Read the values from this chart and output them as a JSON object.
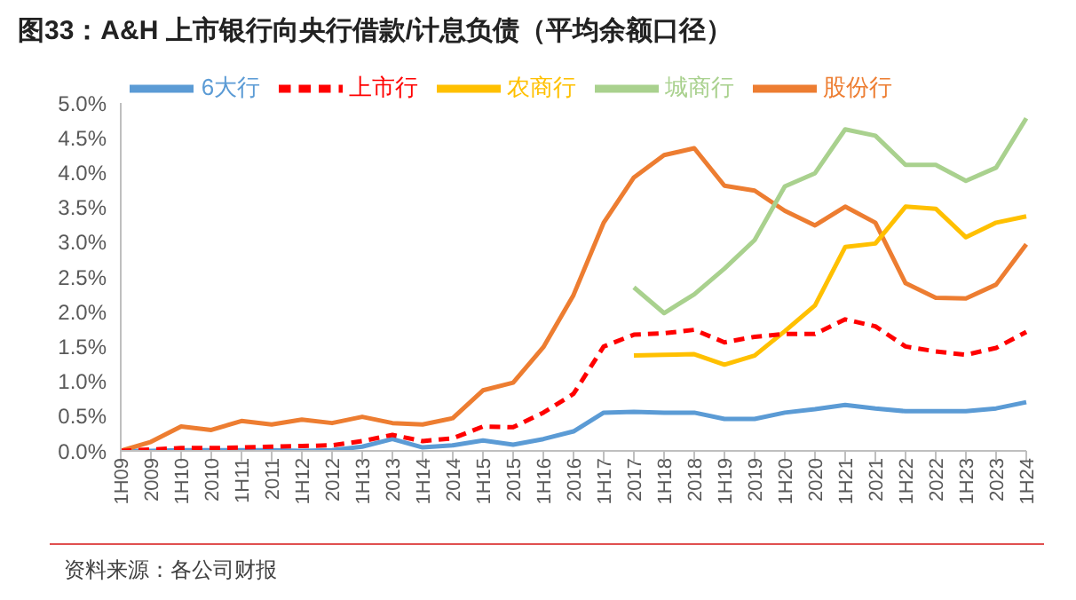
{
  "chart_data": {
    "type": "line",
    "title": "图33：A&H 上市银行向央行借款/计息负债（平均余额口径）",
    "categories": [
      "1H09",
      "2009",
      "1H10",
      "2010",
      "1H11",
      "2011",
      "1H12",
      "2012",
      "1H13",
      "2013",
      "1H14",
      "2014",
      "1H15",
      "2015",
      "1H16",
      "2016",
      "1H17",
      "2017",
      "1H18",
      "2018",
      "1H19",
      "2019",
      "1H20",
      "2020",
      "1H21",
      "2021",
      "1H22",
      "2022",
      "1H23",
      "2023",
      "1H24"
    ],
    "series": [
      {
        "name": "6大行",
        "color": "#5b9bd5",
        "values": [
          0,
          0,
          0.01,
          0.01,
          0.01,
          0.01,
          0,
          0.01,
          0.06,
          0.17,
          0.05,
          0.08,
          0.15,
          0.09,
          0.17,
          0.28,
          0.55,
          0.56,
          0.55,
          0.55,
          0.46,
          0.46,
          0.55,
          0.6,
          0.66,
          0.61,
          0.57,
          0.57,
          0.57,
          0.61,
          0.7
        ]
      },
      {
        "name": "股份行",
        "color": "#ed7d31",
        "values": [
          0,
          0.13,
          0.35,
          0.3,
          0.43,
          0.38,
          0.45,
          0.4,
          0.49,
          0.4,
          0.38,
          0.47,
          0.87,
          0.98,
          1.49,
          2.24,
          3.28,
          3.93,
          4.25,
          4.35,
          3.81,
          3.74,
          3.45,
          3.24,
          3.51,
          3.28,
          2.41,
          2.2,
          2.19,
          2.39,
          2.97
        ]
      },
      {
        "name": "城商行",
        "color": "#a9d18e",
        "values": [
          null,
          null,
          null,
          null,
          null,
          null,
          null,
          null,
          null,
          null,
          null,
          null,
          null,
          null,
          null,
          null,
          null,
          2.35,
          1.98,
          2.25,
          2.62,
          3.03,
          3.8,
          3.99,
          4.62,
          4.53,
          4.11,
          4.11,
          3.88,
          4.07,
          4.78
        ]
      },
      {
        "name": "农商行",
        "color": "#ffc000",
        "values": [
          null,
          null,
          null,
          null,
          null,
          null,
          null,
          null,
          null,
          null,
          null,
          null,
          null,
          null,
          null,
          null,
          null,
          1.37,
          1.38,
          1.39,
          1.24,
          1.37,
          1.72,
          2.09,
          2.93,
          2.98,
          3.51,
          3.48,
          3.07,
          3.28,
          3.37
        ]
      },
      {
        "name": "上市行",
        "color": "#ff0000",
        "line_style": "dashed",
        "values": [
          0,
          0.02,
          0.04,
          0.04,
          0.05,
          0.06,
          0.07,
          0.08,
          0.14,
          0.23,
          0.14,
          0.18,
          0.35,
          0.34,
          0.55,
          0.82,
          1.5,
          1.67,
          1.69,
          1.74,
          1.56,
          1.64,
          1.68,
          1.68,
          1.89,
          1.79,
          1.5,
          1.43,
          1.38,
          1.48,
          1.71
        ]
      }
    ],
    "ylim": [
      0,
      5
    ],
    "yticks": [
      {
        "value": 0,
        "label": "0.0%"
      },
      {
        "value": 0.5,
        "label": "0.5%"
      },
      {
        "value": 1,
        "label": "1.0%"
      },
      {
        "value": 1.5,
        "label": "1.5%"
      },
      {
        "value": 2,
        "label": "2.0%"
      },
      {
        "value": 2.5,
        "label": "2.5%"
      },
      {
        "value": 3,
        "label": "3.0%"
      },
      {
        "value": 3.5,
        "label": "3.5%"
      },
      {
        "value": 4,
        "label": "4.0%"
      },
      {
        "value": 4.5,
        "label": "4.5%"
      },
      {
        "value": 5,
        "label": "5.0%"
      }
    ],
    "grid": false,
    "legend": "top",
    "marker": "none",
    "line_style": "solid",
    "annotations": [
      "资料来源：各公司财报"
    ]
  }
}
